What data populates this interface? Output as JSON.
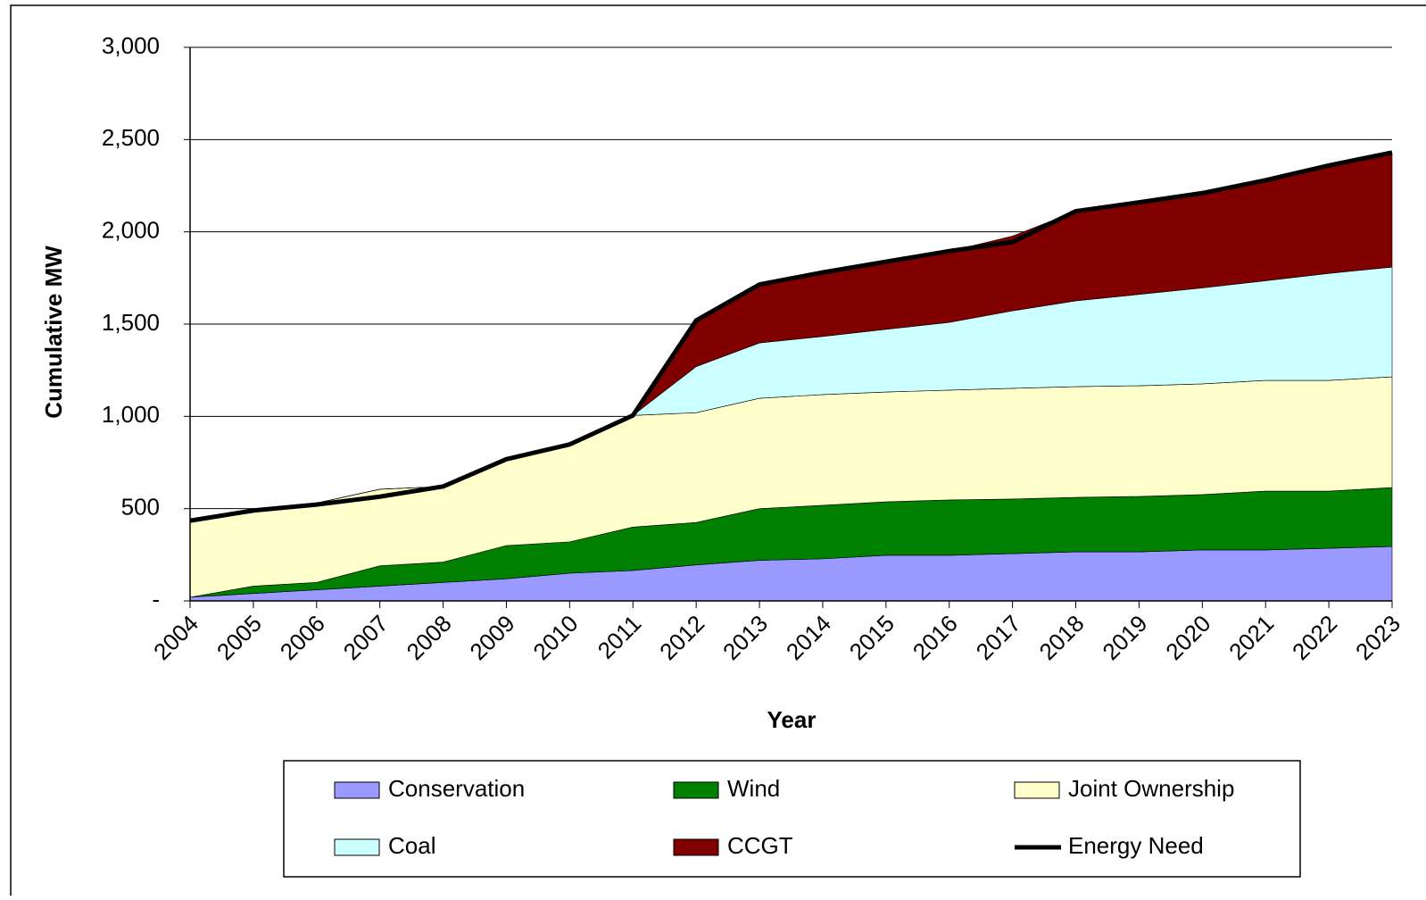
{
  "chart_data": {
    "type": "area",
    "stacked": true,
    "y_label": "Cumulative MW",
    "x_label": "Year",
    "categories": [
      "2004",
      "2005",
      "2006",
      "2007",
      "2008",
      "2009",
      "2010",
      "2011",
      "2012",
      "2013",
      "2014",
      "2015",
      "2016",
      "2017",
      "2018",
      "2019",
      "2020",
      "2021",
      "2022",
      "2023"
    ],
    "series": [
      {
        "name": "Conservation",
        "color": "#9999ff",
        "values": [
          20,
          40,
          60,
          80,
          100,
          120,
          150,
          165,
          195,
          220,
          228,
          247,
          247,
          256,
          266,
          266,
          276,
          276,
          285,
          295
        ]
      },
      {
        "name": "Wind",
        "color": "#008000",
        "values": [
          0,
          40,
          40,
          110,
          110,
          180,
          170,
          235,
          230,
          280,
          290,
          290,
          300,
          296,
          295,
          300,
          300,
          319,
          310,
          319
        ]
      },
      {
        "name": "Joint Ownership",
        "color": "#ffffcc",
        "values": [
          405,
          400,
          430,
          415,
          410,
          465,
          525,
          605,
          595,
          598,
          600,
          595,
          595,
          600,
          600,
          600,
          600,
          600,
          600,
          600
        ]
      },
      {
        "name": "Coal",
        "color": "#ccffff",
        "values": [
          0,
          0,
          0,
          0,
          0,
          0,
          0,
          0,
          250,
          300,
          315,
          340,
          367,
          420,
          465,
          495,
          520,
          540,
          580,
          595
        ]
      },
      {
        "name": "CCGT",
        "color": "#800000",
        "values": [
          0,
          0,
          0,
          0,
          0,
          0,
          0,
          0,
          250,
          320,
          350,
          365,
          385,
          405,
          485,
          500,
          510,
          535,
          580,
          615
        ]
      }
    ],
    "line_series": {
      "name": "Energy Need",
      "color": "#000000",
      "values": [
        435,
        490,
        522,
        565,
        620,
        768,
        848,
        1005,
        1520,
        1715,
        1780,
        1838,
        1896,
        1945,
        2112,
        2160,
        2210,
        2280,
        2360,
        2430
      ]
    },
    "ylim": [
      0,
      3000
    ],
    "yticks": [
      {
        "value": 0,
        "label": "-"
      },
      500,
      {
        "value": 1000,
        "label": "1,000"
      },
      {
        "value": 1500,
        "label": "1,500"
      },
      {
        "value": 2000,
        "label": "2,000"
      },
      {
        "value": 2500,
        "label": "2,500"
      },
      {
        "value": 3000,
        "label": "3,000"
      }
    ],
    "grid": true
  }
}
